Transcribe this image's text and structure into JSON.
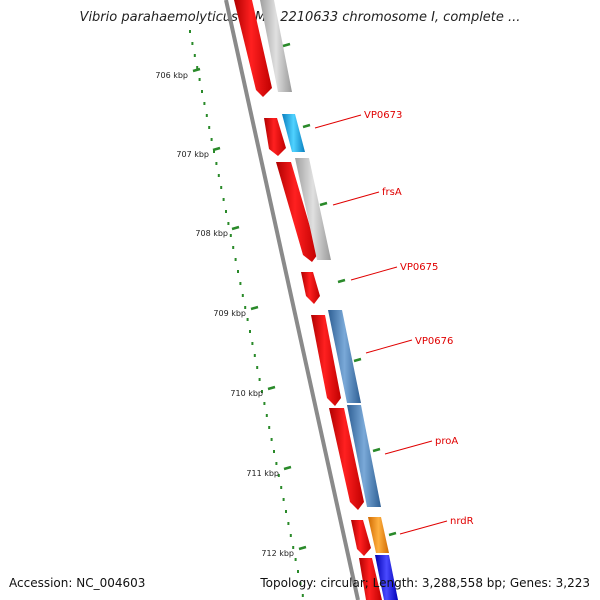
{
  "title": "Vibrio parahaemolyticus RIMD 2210633 chromosome I, complete ...",
  "footer": {
    "accession": "Accession: NC_004603",
    "summary": "Topology: circular; Length: 3,288,558 bp; Genes: 3,223"
  },
  "ruler": {
    "tick_labels": [
      "706 kbp",
      "707 kbp",
      "708 kbp",
      "709 kbp",
      "710 kbp",
      "711 kbp",
      "712 kbp"
    ]
  },
  "genes": {
    "labels": [
      "VP0673",
      "frsA",
      "VP0675",
      "VP0676",
      "proA",
      "nrdR"
    ]
  },
  "colors": {
    "label": "#e00000",
    "forward_cds": "#ff0000",
    "gray_track": "#b8b8b8",
    "cyan_track": "#1ab0e8",
    "steel_track": "#4b80b8",
    "orange_track": "#ff8c00",
    "blue_track": "#1a1aff",
    "backbone": "#888888",
    "tick": "#2a8a2a"
  }
}
